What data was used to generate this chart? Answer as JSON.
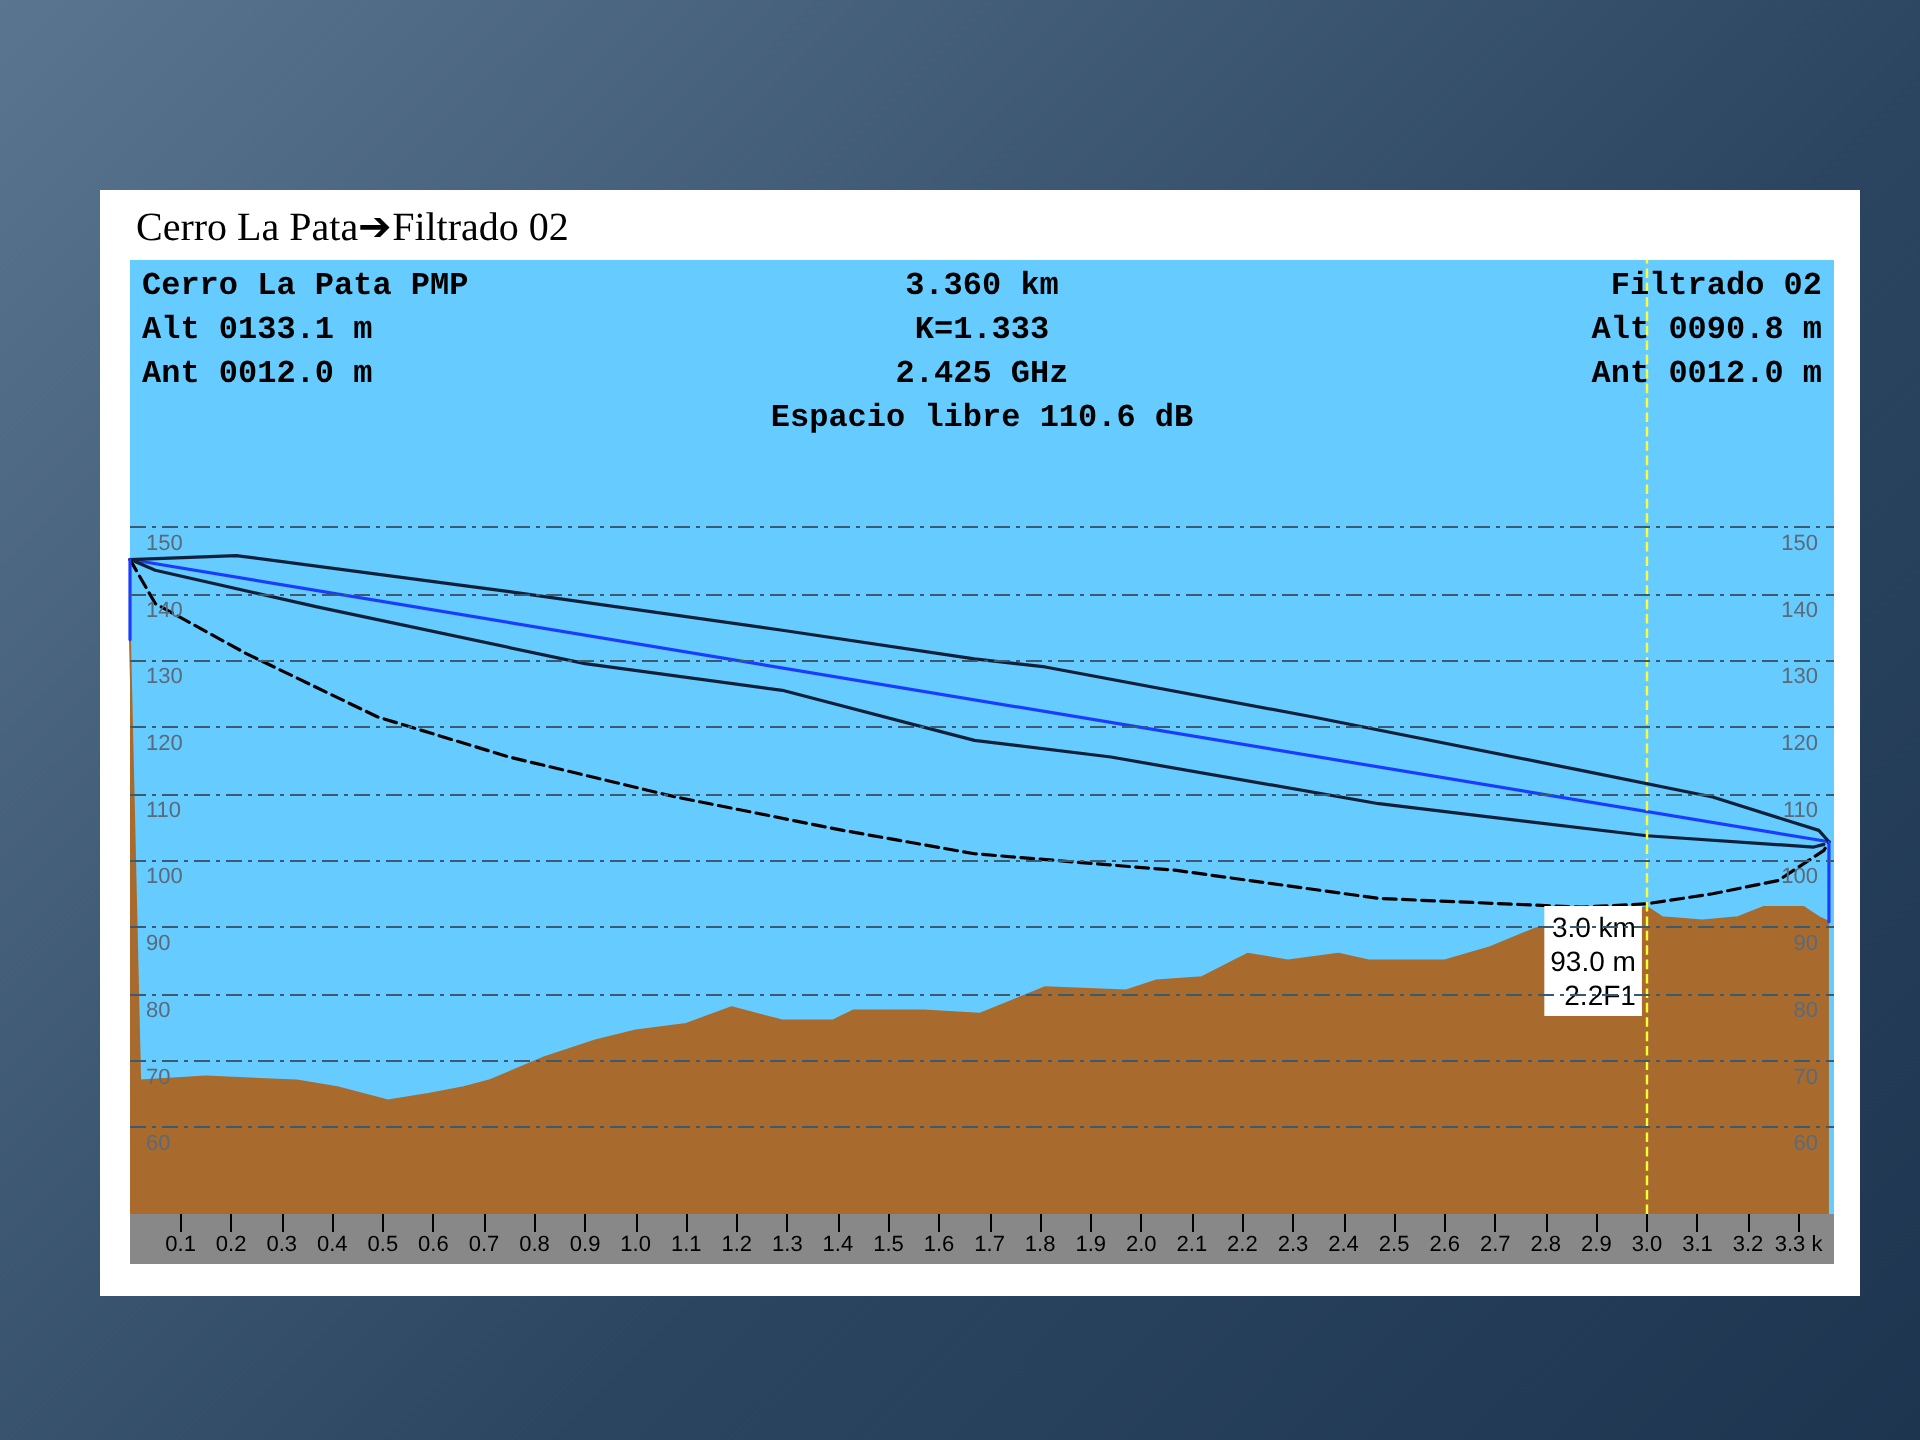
{
  "chart_data": {
    "type": "line",
    "title": "Cerro La Pata➔Filtrado 02",
    "annotations": [
      "Cerro La Pata PMP",
      "Alt 0133.1 m",
      "Ant 0012.0 m",
      "3.360 km",
      "K=1.333",
      "2.425 GHz",
      "Espacio libre 110.6 dB",
      "Filtrado 02",
      "Alt 0090.8 m",
      "Ant 0012.0 m",
      {
        "text": "3.0 km\n93.0 m\n2.2F1",
        "x": 3.0,
        "y": 93.0
      }
    ],
    "xlim": [
      0,
      3.37
    ],
    "xticks": [
      0.1,
      0.2,
      0.3,
      0.4,
      0.5,
      0.6,
      0.7,
      0.8,
      0.9,
      "1.0",
      1.1,
      1.2,
      1.3,
      1.4,
      1.5,
      1.6,
      1.7,
      1.8,
      1.9,
      "2.0",
      2.1,
      2.2,
      2.3,
      2.4,
      2.5,
      2.6,
      2.7,
      2.8,
      2.9,
      "3.0",
      3.1,
      3.2,
      {
        "value": 3.3,
        "label": "3.3 k"
      }
    ],
    "ylim": [
      47,
      190
    ],
    "yticks": [
      60,
      70,
      80,
      90,
      100,
      110,
      120,
      130,
      140,
      150
    ],
    "y2lim": [
      47,
      190
    ],
    "y2ticks": [
      60,
      70,
      80,
      90,
      100,
      110,
      120,
      130,
      140,
      150
    ],
    "grid": "y",
    "marker": "none",
    "ref_lines": [
      {
        "axis": "x",
        "value": 3.0,
        "color": "#ffff33",
        "line_style": "dashed"
      }
    ],
    "series": [
      {
        "type": "area",
        "color": "#a86b2d",
        "x": [
          0,
          0.02,
          0.15,
          0.33,
          0.41,
          0.51,
          0.59,
          0.66,
          0.71,
          0.82,
          0.92,
          1.0,
          1.1,
          1.19,
          1.29,
          1.39,
          1.43,
          1.57,
          1.68,
          1.81,
          1.97,
          2.03,
          2.12,
          2.21,
          2.29,
          2.39,
          2.45,
          2.6,
          2.69,
          2.78,
          3.0,
          3.03,
          3.11,
          3.18,
          3.23,
          3.31,
          3.34,
          3.36
        ],
        "values": [
          133.1,
          67,
          67.6,
          67,
          66,
          64,
          65,
          66,
          67,
          70.5,
          73,
          74.5,
          75.5,
          78,
          76,
          76,
          77.5,
          77.5,
          77,
          81,
          80.5,
          82,
          82.5,
          86,
          85,
          86,
          85,
          85,
          87,
          89.8,
          93,
          91.5,
          91,
          91.5,
          93,
          93,
          91.5,
          90.8
        ]
      },
      {
        "color": "#1a3cff",
        "x": [
          0,
          3.36
        ],
        "values": [
          145.1,
          102.8
        ]
      },
      {
        "color": "#10203a",
        "x": [
          0,
          0.21,
          0.75,
          1.29,
          1.67,
          1.81,
          2.34,
          2.87,
          3.13,
          3.34,
          3.36
        ],
        "values": [
          145.1,
          145.7,
          140.3,
          134.5,
          130.2,
          129,
          121.5,
          113.5,
          109.5,
          104.5,
          102.8
        ]
      },
      {
        "color": "#10203a",
        "x": [
          0.01,
          0.05,
          0.37,
          0.9,
          1.29,
          1.67,
          1.94,
          2.47,
          3.0,
          3.33,
          3.35
        ],
        "values": [
          144.8,
          143.5,
          138,
          129.5,
          125.5,
          118,
          115.5,
          108.5,
          103.7,
          102,
          102.4
        ]
      },
      {
        "color": "#000000",
        "line_style": "dashed",
        "x": [
          0,
          0.05,
          0.23,
          0.49,
          0.75,
          1.08,
          1.41,
          1.67,
          2.07,
          2.47,
          2.87,
          3.0,
          3.13,
          3.26,
          3.35,
          3.36
        ],
        "values": [
          145.1,
          138.5,
          131,
          121.5,
          115.5,
          109.5,
          104.5,
          101,
          98.5,
          94.3,
          93,
          93.5,
          95,
          97,
          101.5,
          102.8
        ]
      },
      {
        "color": "#1a3cff",
        "x": [
          0,
          0
        ],
        "values": [
          133.1,
          145.1
        ]
      },
      {
        "color": "#1a3cff",
        "x": [
          3.36,
          3.36
        ],
        "values": [
          90.8,
          102.8
        ]
      }
    ]
  }
}
